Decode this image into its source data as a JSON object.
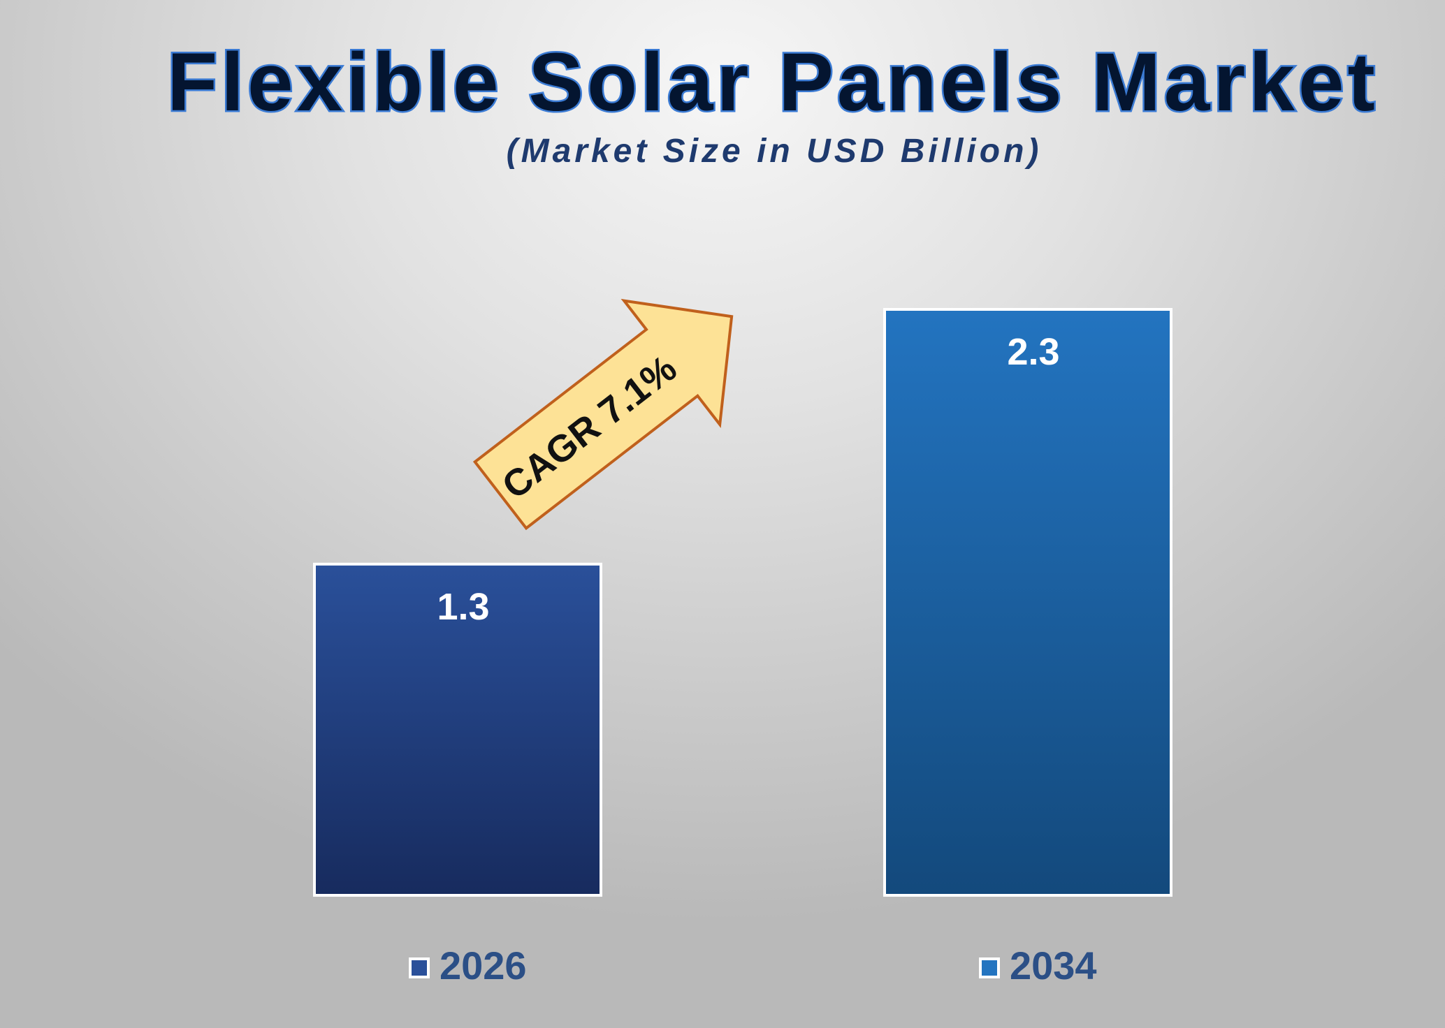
{
  "chart_data": {
    "type": "bar",
    "title": "Flexible Solar Panels Market",
    "subtitle": "(Market Size in USD Billion)",
    "categories": [
      "2026",
      "2034"
    ],
    "values": [
      1.3,
      2.3
    ],
    "value_labels": [
      "1.3",
      "2.3"
    ],
    "ylim": [
      0,
      2.3
    ],
    "grid": false,
    "legend": "bottom",
    "annotation": {
      "text": "CAGR 7.1%",
      "shape": "upward arrow between bars"
    },
    "colors": {
      "bars": [
        {
          "top": "#2a509a",
          "bottom": "#172b5e"
        },
        {
          "top": "#2374c0",
          "bottom": "#13497c"
        }
      ],
      "bar_border": "#ffffff",
      "title": "#041530",
      "title_outline": "#3b7bd4",
      "subtitle": "#1e3a6e",
      "value_label": "#ffffff",
      "category_label": "#2b4f86",
      "arrow_fill": "#fde296",
      "arrow_stroke": "#c0601c",
      "arrow_text": "#111111"
    }
  }
}
